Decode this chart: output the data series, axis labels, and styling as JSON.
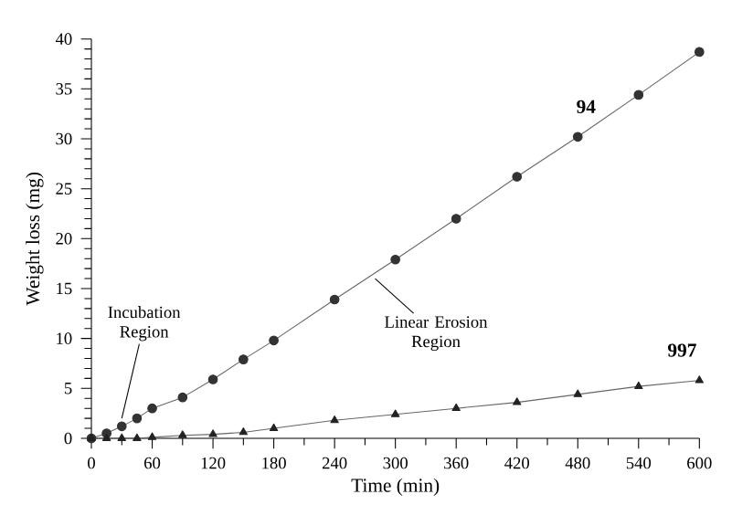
{
  "chart_data": {
    "type": "line",
    "xlabel": "Time (min)",
    "ylabel": "Weight loss (mg)",
    "xlim": [
      0,
      600
    ],
    "xticks": [
      0,
      60,
      120,
      180,
      240,
      300,
      360,
      420,
      480,
      540,
      600
    ],
    "ylim": [
      0,
      40
    ],
    "yticks": [
      0,
      5,
      10,
      15,
      20,
      25,
      30,
      35,
      40
    ],
    "grid": false,
    "line_style": "solid",
    "x": [
      0,
      15,
      30,
      45,
      60,
      90,
      120,
      150,
      180,
      240,
      300,
      360,
      420,
      480,
      540,
      600
    ],
    "series": [
      {
        "name": "94",
        "color": "#333333",
        "marker": "circle",
        "values": [
          0,
          0.5,
          1.2,
          2,
          3,
          4.1,
          5.9,
          7.9,
          9.8,
          13.9,
          17.9,
          22,
          26.2,
          30.2,
          34.4,
          38.7
        ]
      },
      {
        "name": "997",
        "color": "#222222",
        "marker": "triangle",
        "values": [
          0,
          0,
          0,
          0,
          0.1,
          0.3,
          0.4,
          0.6,
          1,
          1.8,
          2.4,
          3,
          3.6,
          4.4,
          5.2,
          5.8
        ]
      }
    ],
    "annotations": [
      {
        "text": "Incubation Region",
        "x": 30,
        "y": 2
      },
      {
        "text": "Linear Erosion Region",
        "x": 280,
        "y": 16
      }
    ]
  }
}
